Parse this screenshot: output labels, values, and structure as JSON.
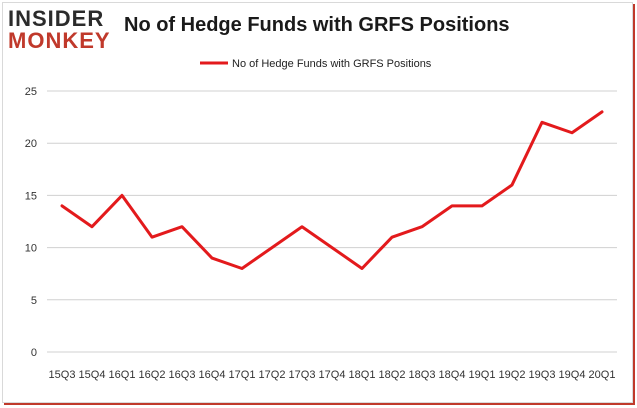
{
  "logo": {
    "line1": "INSIDER",
    "line2": "MONKEY"
  },
  "chart_data": {
    "type": "line",
    "title": "No of Hedge Funds with GRFS Positions",
    "categories": [
      "15Q3",
      "15Q4",
      "16Q1",
      "16Q2",
      "16Q3",
      "16Q4",
      "17Q1",
      "17Q2",
      "17Q3",
      "17Q4",
      "18Q1",
      "18Q2",
      "18Q3",
      "18Q4",
      "19Q1",
      "19Q2",
      "19Q3",
      "19Q4",
      "20Q1"
    ],
    "series": [
      {
        "name": "No of Hedge Funds with GRFS Positions",
        "values": [
          14,
          12,
          15,
          11,
          12,
          9,
          8,
          10,
          12,
          10,
          8,
          11,
          12,
          14,
          14,
          16,
          22,
          21,
          23
        ]
      }
    ],
    "ylim": [
      0,
      25
    ],
    "yticks": [
      0,
      5,
      10,
      15,
      20,
      25
    ],
    "legend": "top-center",
    "grid": true,
    "line_color": "#e31a1c"
  }
}
